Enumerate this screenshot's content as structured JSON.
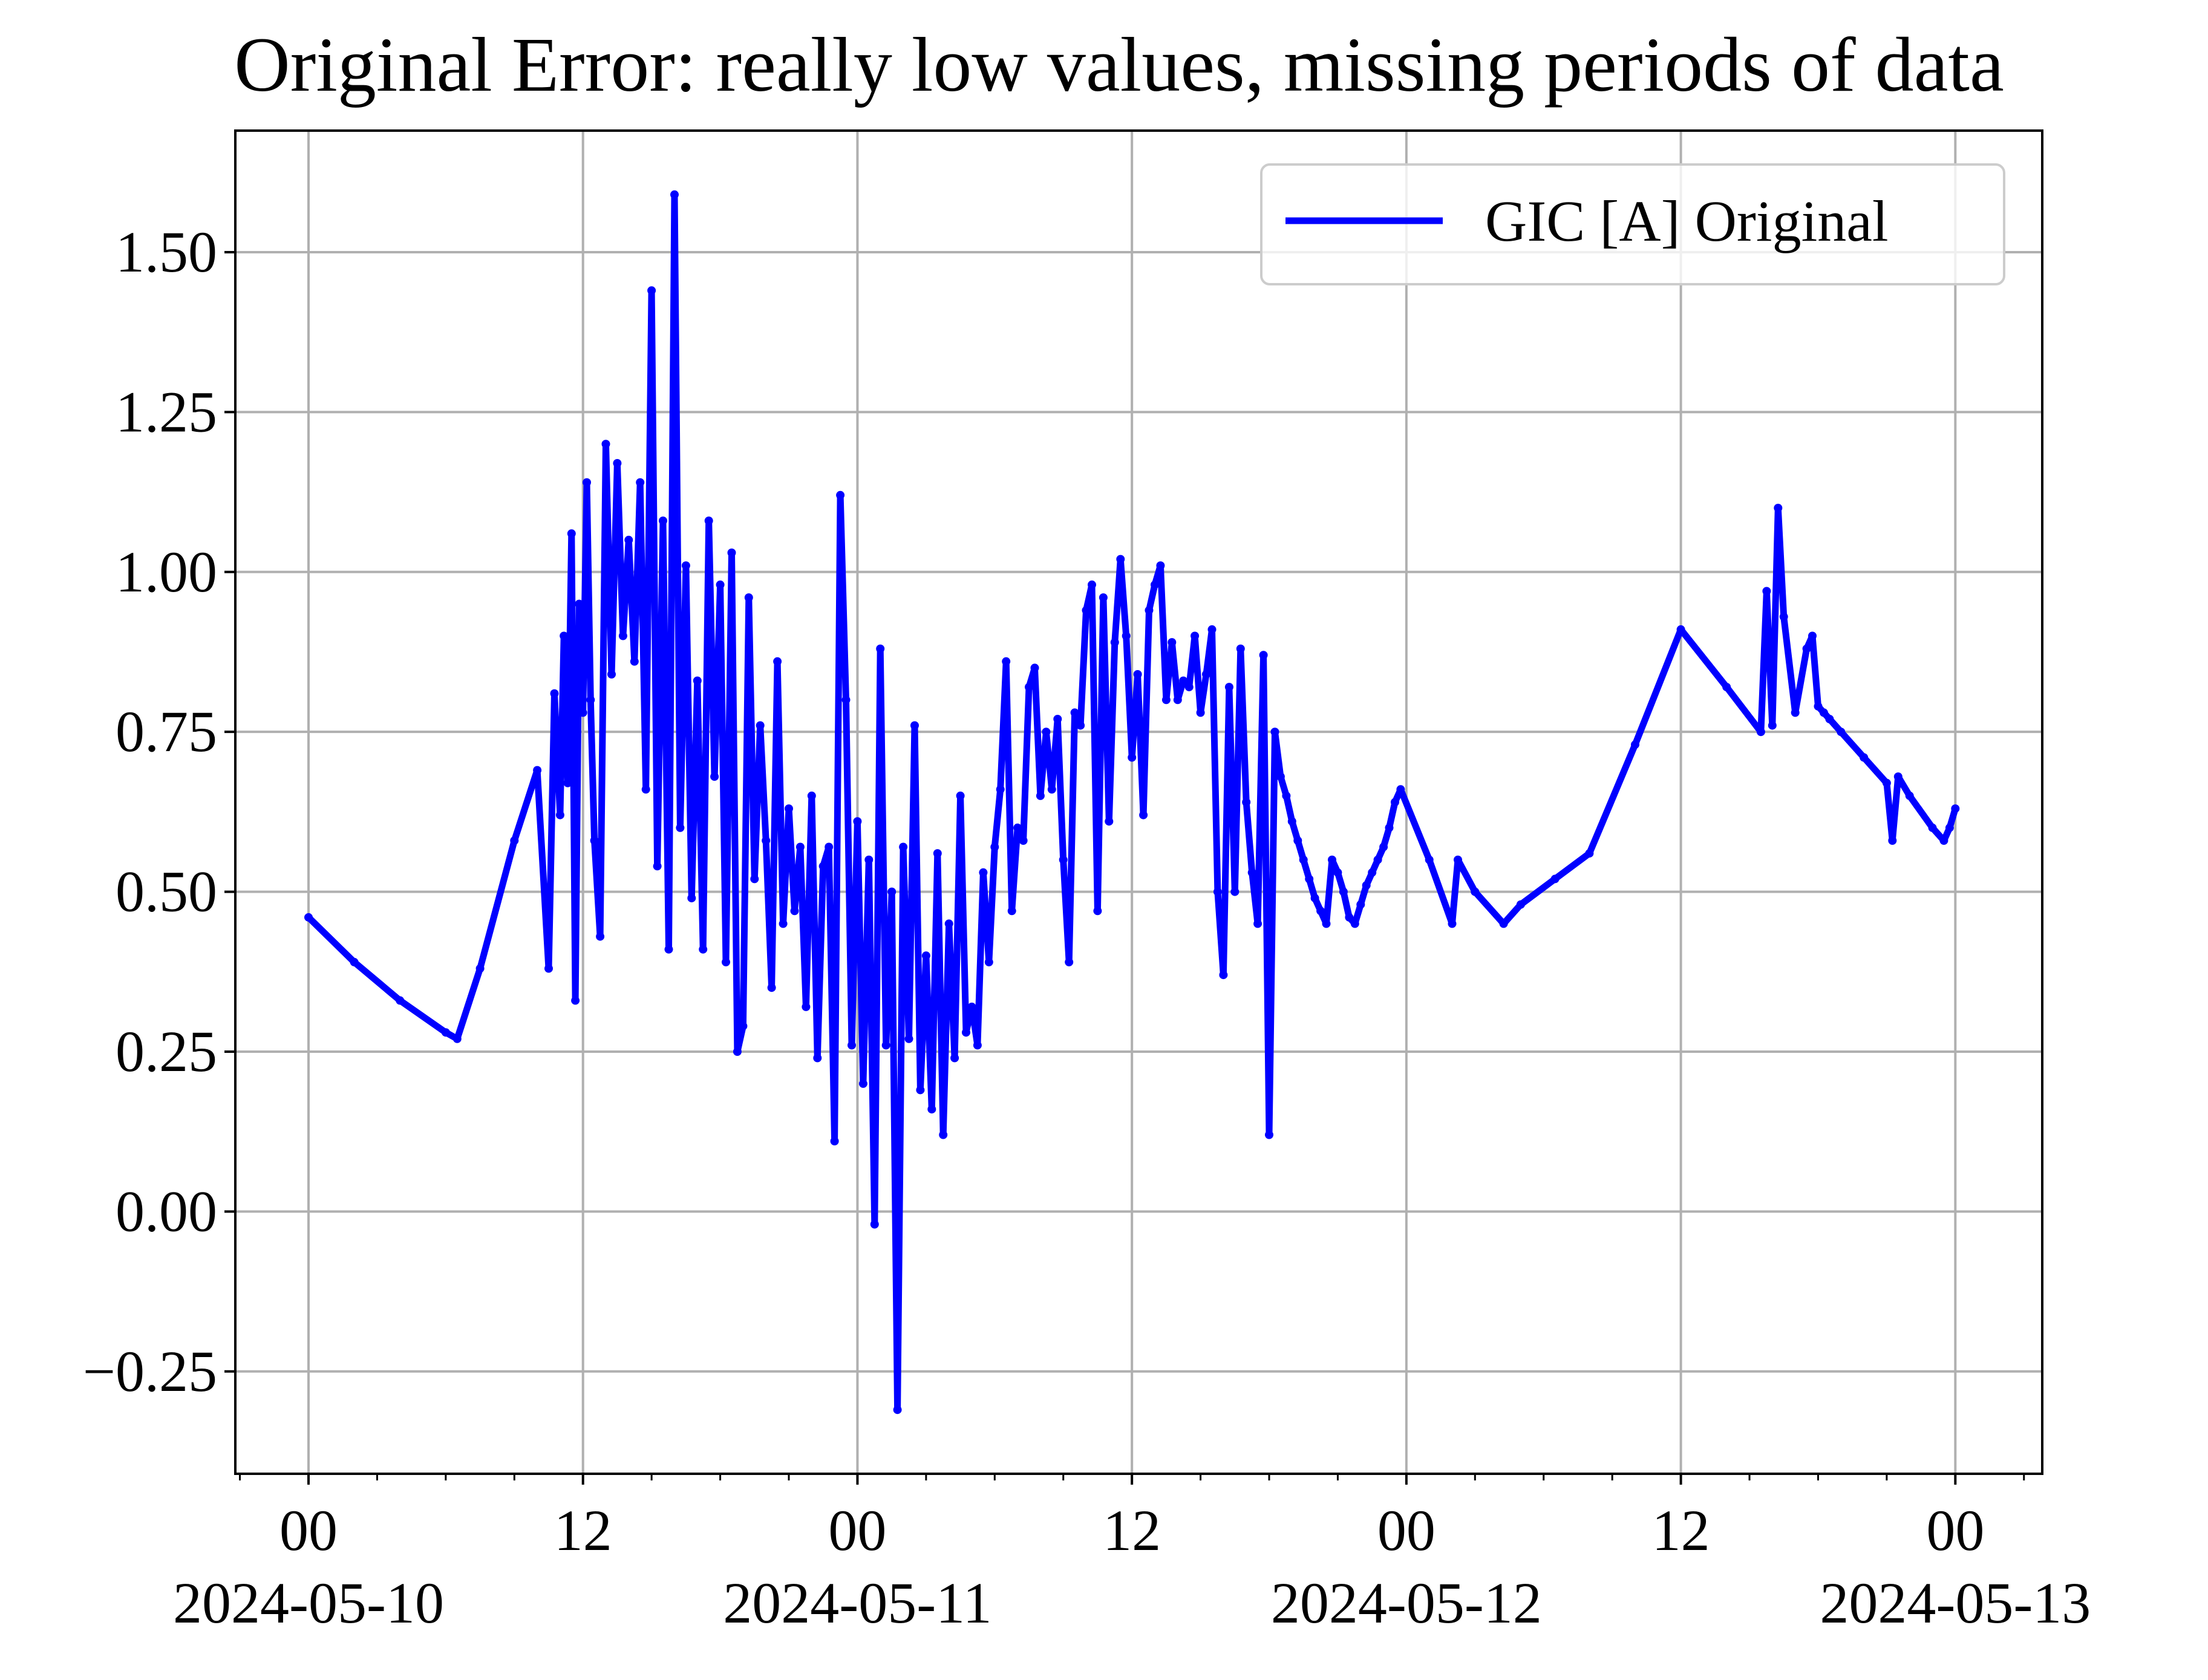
{
  "chart_data": {
    "type": "line",
    "title": "Original Error: really low values, missing periods of data",
    "xlabel": "",
    "ylabel": "",
    "x_range": [
      "2024-05-09T20:48",
      "2024-05-13T03:48"
    ],
    "ylim": [
      -0.41,
      1.69
    ],
    "grid": true,
    "legend_position": "upper right",
    "colors": {
      "series": "#0000ff",
      "grid": "#b0b0b0",
      "axes": "#000000",
      "legend_border": "#cccccc"
    },
    "y_ticks": [
      {
        "value": -0.25,
        "label": "−0.25"
      },
      {
        "value": 0.0,
        "label": "0.00"
      },
      {
        "value": 0.25,
        "label": "0.25"
      },
      {
        "value": 0.5,
        "label": "0.50"
      },
      {
        "value": 0.75,
        "label": "0.75"
      },
      {
        "value": 1.0,
        "label": "1.00"
      },
      {
        "value": 1.25,
        "label": "1.25"
      },
      {
        "value": 1.5,
        "label": "1.50"
      }
    ],
    "x_ticks": [
      {
        "time": "2024-05-10T00:00",
        "label": "00",
        "sublabel": "2024-05-10"
      },
      {
        "time": "2024-05-10T12:00",
        "label": "12",
        "sublabel": ""
      },
      {
        "time": "2024-05-11T00:00",
        "label": "00",
        "sublabel": "2024-05-11"
      },
      {
        "time": "2024-05-11T12:00",
        "label": "12",
        "sublabel": ""
      },
      {
        "time": "2024-05-12T00:00",
        "label": "00",
        "sublabel": "2024-05-12"
      },
      {
        "time": "2024-05-12T12:00",
        "label": "12",
        "sublabel": ""
      },
      {
        "time": "2024-05-13T00:00",
        "label": "00",
        "sublabel": "2024-05-13"
      }
    ],
    "series": [
      {
        "name": "GIC [A] Original",
        "x": [
          "2024-05-10T00:00",
          "2024-05-10T02:00",
          "2024-05-10T04:00",
          "2024-05-10T06:00",
          "2024-05-10T06:30",
          "2024-05-10T07:30",
          "2024-05-10T09:00",
          "2024-05-10T10:00",
          "2024-05-10T10:30",
          "2024-05-10T10:45",
          "2024-05-10T11:00",
          "2024-05-10T11:10",
          "2024-05-10T11:20",
          "2024-05-10T11:30",
          "2024-05-10T11:40",
          "2024-05-10T11:50",
          "2024-05-10T12:00",
          "2024-05-10T12:10",
          "2024-05-10T12:20",
          "2024-05-10T12:30",
          "2024-05-10T12:45",
          "2024-05-10T13:00",
          "2024-05-10T13:15",
          "2024-05-10T13:30",
          "2024-05-10T13:45",
          "2024-05-10T14:00",
          "2024-05-10T14:15",
          "2024-05-10T14:30",
          "2024-05-10T14:45",
          "2024-05-10T15:00",
          "2024-05-10T15:15",
          "2024-05-10T15:30",
          "2024-05-10T15:45",
          "2024-05-10T16:00",
          "2024-05-10T16:15",
          "2024-05-10T16:30",
          "2024-05-10T16:45",
          "2024-05-10T17:00",
          "2024-05-10T17:15",
          "2024-05-10T17:30",
          "2024-05-10T17:45",
          "2024-05-10T18:00",
          "2024-05-10T18:15",
          "2024-05-10T18:30",
          "2024-05-10T18:45",
          "2024-05-10T19:00",
          "2024-05-10T19:15",
          "2024-05-10T19:30",
          "2024-05-10T19:45",
          "2024-05-10T20:00",
          "2024-05-10T20:15",
          "2024-05-10T20:30",
          "2024-05-10T20:45",
          "2024-05-10T21:00",
          "2024-05-10T21:15",
          "2024-05-10T21:30",
          "2024-05-10T21:45",
          "2024-05-10T22:00",
          "2024-05-10T22:15",
          "2024-05-10T22:30",
          "2024-05-10T22:45",
          "2024-05-10T23:00",
          "2024-05-10T23:15",
          "2024-05-10T23:30",
          "2024-05-10T23:45",
          "2024-05-11T00:00",
          "2024-05-11T00:15",
          "2024-05-11T00:30",
          "2024-05-11T00:45",
          "2024-05-11T01:00",
          "2024-05-11T01:15",
          "2024-05-11T01:30",
          "2024-05-11T01:45",
          "2024-05-11T02:00",
          "2024-05-11T02:15",
          "2024-05-11T02:30",
          "2024-05-11T02:45",
          "2024-05-11T03:00",
          "2024-05-11T03:15",
          "2024-05-11T03:30",
          "2024-05-11T03:45",
          "2024-05-11T04:00",
          "2024-05-11T04:15",
          "2024-05-11T04:30",
          "2024-05-11T04:45",
          "2024-05-11T05:00",
          "2024-05-11T05:15",
          "2024-05-11T05:30",
          "2024-05-11T05:45",
          "2024-05-11T06:00",
          "2024-05-11T06:15",
          "2024-05-11T06:30",
          "2024-05-11T06:45",
          "2024-05-11T07:00",
          "2024-05-11T07:15",
          "2024-05-11T07:30",
          "2024-05-11T07:45",
          "2024-05-11T08:00",
          "2024-05-11T08:15",
          "2024-05-11T08:30",
          "2024-05-11T08:45",
          "2024-05-11T09:00",
          "2024-05-11T09:15",
          "2024-05-11T09:30",
          "2024-05-11T09:45",
          "2024-05-11T10:00",
          "2024-05-11T10:15",
          "2024-05-11T10:30",
          "2024-05-11T10:45",
          "2024-05-11T11:00",
          "2024-05-11T11:15",
          "2024-05-11T11:30",
          "2024-05-11T11:45",
          "2024-05-11T12:00",
          "2024-05-11T12:15",
          "2024-05-11T12:30",
          "2024-05-11T12:45",
          "2024-05-11T13:00",
          "2024-05-11T13:15",
          "2024-05-11T13:30",
          "2024-05-11T13:45",
          "2024-05-11T14:00",
          "2024-05-11T14:15",
          "2024-05-11T14:30",
          "2024-05-11T14:45",
          "2024-05-11T15:00",
          "2024-05-11T15:15",
          "2024-05-11T15:30",
          "2024-05-11T15:45",
          "2024-05-11T16:00",
          "2024-05-11T16:15",
          "2024-05-11T16:30",
          "2024-05-11T16:45",
          "2024-05-11T17:00",
          "2024-05-11T17:15",
          "2024-05-11T17:30",
          "2024-05-11T17:45",
          "2024-05-11T18:00",
          "2024-05-11T18:15",
          "2024-05-11T18:30",
          "2024-05-11T18:45",
          "2024-05-11T19:00",
          "2024-05-11T19:15",
          "2024-05-11T19:30",
          "2024-05-11T19:45",
          "2024-05-11T20:00",
          "2024-05-11T20:15",
          "2024-05-11T20:30",
          "2024-05-11T20:45",
          "2024-05-11T21:00",
          "2024-05-11T21:15",
          "2024-05-11T21:30",
          "2024-05-11T21:45",
          "2024-05-11T22:00",
          "2024-05-11T22:15",
          "2024-05-11T22:30",
          "2024-05-11T22:45",
          "2024-05-11T23:00",
          "2024-05-11T23:15",
          "2024-05-11T23:30",
          "2024-05-11T23:45",
          "2024-05-12T01:00",
          "2024-05-12T02:00",
          "2024-05-12T02:15",
          "2024-05-12T03:00",
          "2024-05-12T04:15",
          "2024-05-12T05:00",
          "2024-05-12T06:30",
          "2024-05-12T08:00",
          "2024-05-12T10:00",
          "2024-05-12T12:00",
          "2024-05-12T14:00",
          "2024-05-12T15:30",
          "2024-05-12T15:45",
          "2024-05-12T16:00",
          "2024-05-12T16:15",
          "2024-05-12T16:30",
          "2024-05-12T17:00",
          "2024-05-12T17:30",
          "2024-05-12T17:45",
          "2024-05-12T18:00",
          "2024-05-12T18:15",
          "2024-05-12T18:30",
          "2024-05-12T19:00",
          "2024-05-12T20:00",
          "2024-05-12T21:00",
          "2024-05-12T21:15",
          "2024-05-12T21:30",
          "2024-05-12T22:00",
          "2024-05-12T23:00",
          "2024-05-12T23:30",
          "2024-05-12T23:45",
          "2024-05-13T00:00"
        ],
        "y": [
          0.46,
          0.39,
          0.33,
          0.28,
          0.27,
          0.38,
          0.58,
          0.69,
          0.38,
          0.81,
          0.62,
          0.9,
          0.67,
          1.06,
          0.33,
          0.95,
          0.78,
          1.14,
          0.8,
          0.58,
          0.43,
          1.2,
          0.84,
          1.17,
          0.9,
          1.05,
          0.86,
          1.14,
          0.66,
          1.44,
          0.54,
          1.08,
          0.41,
          1.59,
          0.6,
          1.01,
          0.49,
          0.83,
          0.41,
          1.08,
          0.68,
          0.98,
          0.39,
          1.03,
          0.25,
          0.29,
          0.96,
          0.52,
          0.76,
          0.58,
          0.35,
          0.86,
          0.45,
          0.63,
          0.47,
          0.57,
          0.32,
          0.65,
          0.24,
          0.54,
          0.57,
          0.11,
          1.12,
          0.8,
          0.26,
          0.61,
          0.2,
          0.55,
          -0.02,
          0.88,
          0.26,
          0.5,
          -0.31,
          0.57,
          0.27,
          0.76,
          0.19,
          0.4,
          0.16,
          0.56,
          0.12,
          0.45,
          0.24,
          0.65,
          0.28,
          0.32,
          0.26,
          0.53,
          0.39,
          0.57,
          0.66,
          0.86,
          0.47,
          0.6,
          0.58,
          0.82,
          0.85,
          0.65,
          0.75,
          0.66,
          0.77,
          0.55,
          0.39,
          0.78,
          0.76,
          0.94,
          0.98,
          0.47,
          0.96,
          0.61,
          0.89,
          1.02,
          0.9,
          0.71,
          0.84,
          0.62,
          0.94,
          0.98,
          1.01,
          0.8,
          0.89,
          0.8,
          0.83,
          0.82,
          0.9,
          0.78,
          0.84,
          0.91,
          0.5,
          0.37,
          0.82,
          0.5,
          0.88,
          0.64,
          0.53,
          0.45,
          0.87,
          0.12,
          0.75,
          0.68,
          0.65,
          0.61,
          0.58,
          0.55,
          0.52,
          0.49,
          0.47,
          0.45,
          0.55,
          0.53,
          0.5,
          0.46,
          0.45,
          0.48,
          0.51,
          0.53,
          0.55,
          0.57,
          0.6,
          0.64,
          0.66,
          0.55,
          0.45,
          0.55,
          0.5,
          0.45,
          0.48,
          0.52,
          0.56,
          0.73,
          0.91,
          0.82,
          0.75,
          0.97,
          0.76,
          1.1,
          0.93,
          0.78,
          0.88,
          0.9,
          0.79,
          0.78,
          0.77,
          0.75,
          0.71,
          0.67,
          0.58,
          0.68,
          0.65,
          0.6,
          0.58,
          0.6,
          0.63
        ]
      }
    ]
  }
}
